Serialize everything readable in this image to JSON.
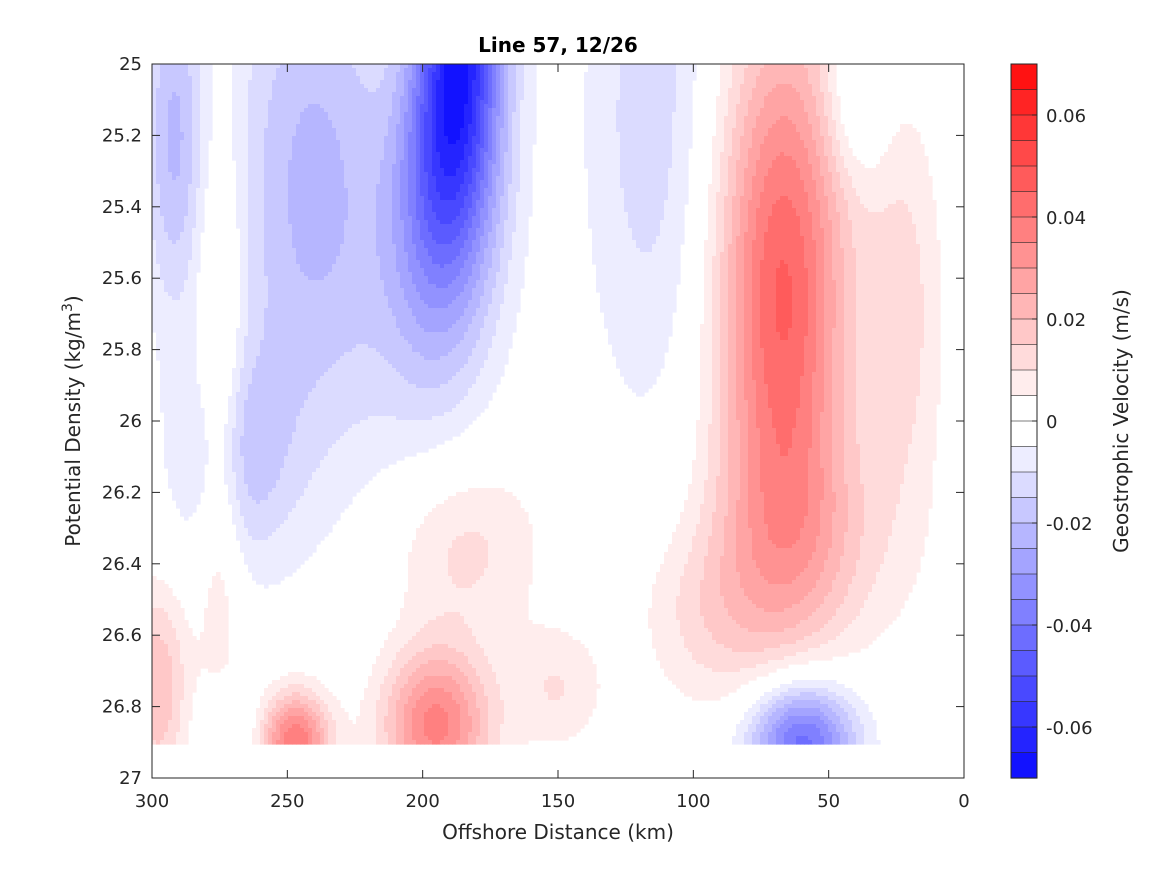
{
  "chart_data": {
    "type": "heatmap",
    "subtype": "filled-contour",
    "title": "Line 57, 12/26",
    "xlabel": "Offshore Distance (km)",
    "ylabel_main": "Potential Density (kg/m",
    "ylabel_sup": "3",
    "ylabel_end": ")",
    "colorbar_label": "Geostrophic Velocity (m/s)",
    "xlim": [
      300,
      0
    ],
    "ylim": [
      25,
      27
    ],
    "x_reversed": true,
    "y_reversed": true,
    "x_ticks": [
      300,
      250,
      200,
      150,
      100,
      50,
      0
    ],
    "x_tick_labels": [
      "300",
      "250",
      "200",
      "150",
      "100",
      "50",
      "0"
    ],
    "y_ticks": [
      25,
      25.2,
      25.4,
      25.6,
      25.8,
      26,
      26.2,
      26.4,
      26.6,
      26.8,
      27
    ],
    "y_tick_labels": [
      "25",
      "25.2",
      "25.4",
      "25.6",
      "25.8",
      "26",
      "26.2",
      "26.4",
      "26.6",
      "26.8",
      "27"
    ],
    "colorbar_limits": [
      -0.07,
      0.07
    ],
    "colorbar_ticks": [
      -0.06,
      -0.04,
      -0.02,
      0,
      0.02,
      0.04,
      0.06
    ],
    "colorbar_tick_labels": [
      "-0.06",
      "-0.04",
      "-0.02",
      "0",
      "0.02",
      "0.04",
      "0.06"
    ],
    "contour_step": 0.005,
    "colormap": "blue-white-red",
    "color_negative": "#0000ff",
    "color_zero": "#ffffff",
    "color_positive": "#ff0000",
    "data_y_max": 26.9,
    "features": [
      {
        "name": "offshore-negative-core",
        "x": 185,
        "y": 25.05,
        "peak": -0.065
      },
      {
        "name": "far-offshore-negative",
        "x": 290,
        "y": 25.2,
        "peak": -0.02
      },
      {
        "name": "negative-250km",
        "x": 248,
        "y": 25.3,
        "peak": -0.02
      },
      {
        "name": "negative-110km",
        "x": 115,
        "y": 25.1,
        "peak": -0.012
      },
      {
        "name": "nearshore-positive-core",
        "x": 65,
        "y": 25.6,
        "peak": 0.04
      },
      {
        "name": "positive-200km-deep",
        "x": 195,
        "y": 26.85,
        "peak": 0.03
      },
      {
        "name": "positive-250km-deep",
        "x": 248,
        "y": 26.88,
        "peak": 0.035
      },
      {
        "name": "negative-60km-deep",
        "x": 60,
        "y": 26.88,
        "peak": -0.04
      }
    ]
  }
}
